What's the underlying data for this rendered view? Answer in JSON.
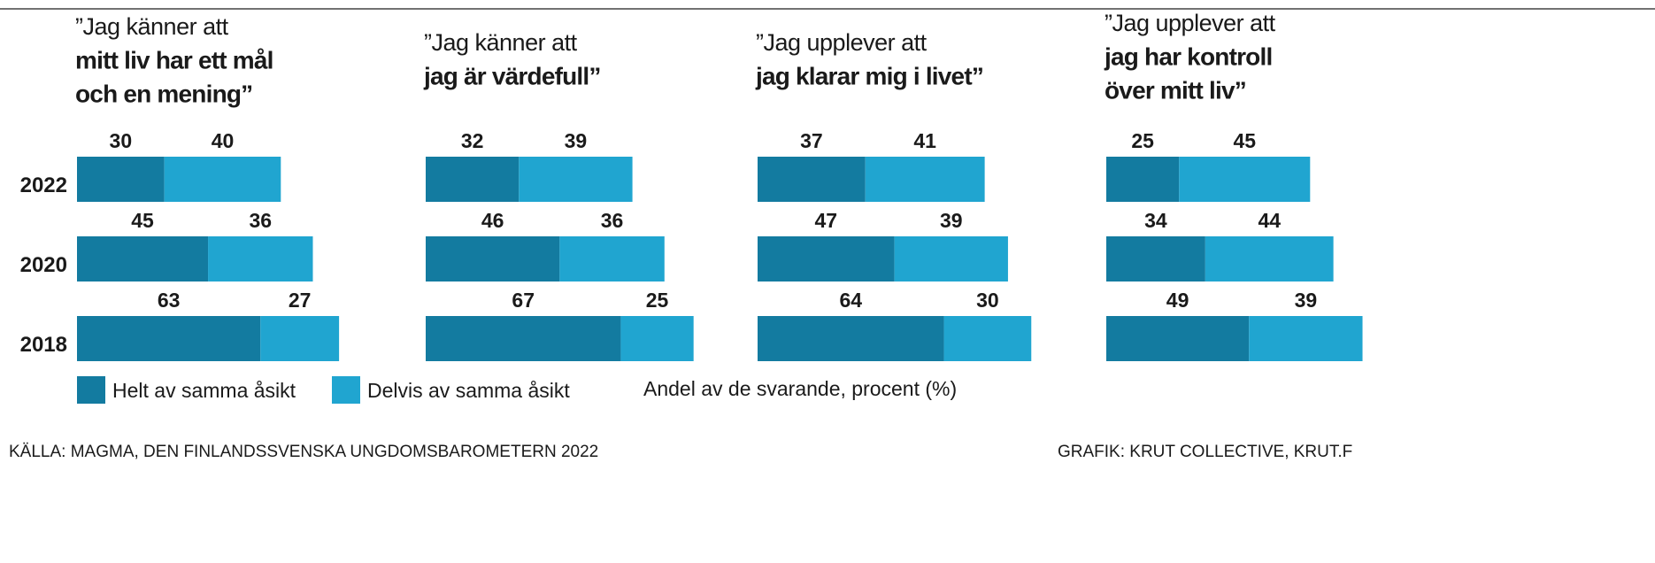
{
  "chart_data": [
    {
      "type": "bar",
      "stacked": true,
      "title": [
        "”Jag känner att",
        "mitt liv har ett mål",
        "och en mening”"
      ],
      "categories": [
        "2022",
        "2020",
        "2018"
      ],
      "series": [
        {
          "name": "Helt av samma åsikt",
          "color": "#137ba0",
          "values": [
            30,
            45,
            63
          ]
        },
        {
          "name": "Delvis av samma åsikt",
          "color": "#20a5d0",
          "values": [
            40,
            36,
            27
          ]
        }
      ]
    },
    {
      "type": "bar",
      "stacked": true,
      "title": [
        "”Jag känner att",
        "jag är värdefull”"
      ],
      "series": [
        {
          "name": "Helt av samma åsikt",
          "color": "#137ba0",
          "values": [
            32,
            46,
            67
          ]
        },
        {
          "name": "Delvis av samma åsikt",
          "color": "#20a5d0",
          "values": [
            39,
            36,
            25
          ]
        }
      ]
    },
    {
      "type": "bar",
      "stacked": true,
      "title": [
        "”Jag upplever att",
        "jag klarar mig i livet”"
      ],
      "series": [
        {
          "name": "Helt av samma åsikt",
          "color": "#137ba0",
          "values": [
            37,
            47,
            64
          ]
        },
        {
          "name": "Delvis av samma åsikt",
          "color": "#20a5d0",
          "values": [
            41,
            39,
            30
          ]
        }
      ]
    },
    {
      "type": "bar",
      "stacked": true,
      "title": [
        "”Jag upplever att",
        "jag har kontroll",
        "över mitt liv”"
      ],
      "series": [
        {
          "name": "Helt av samma åsikt",
          "color": "#137ba0",
          "values": [
            25,
            34,
            49
          ]
        },
        {
          "name": "Delvis av samma åsikt",
          "color": "#20a5d0",
          "values": [
            45,
            44,
            39
          ]
        }
      ]
    }
  ],
  "note": "Andel av de svarande, procent (%)",
  "source": "KÄLLA: MAGMA, DEN FINLANDSSVENSKA UNGDOMSBAROMETERN 2022",
  "credit": "GRAFIK: KRUT COLLECTIVE, KRUT.F"
}
